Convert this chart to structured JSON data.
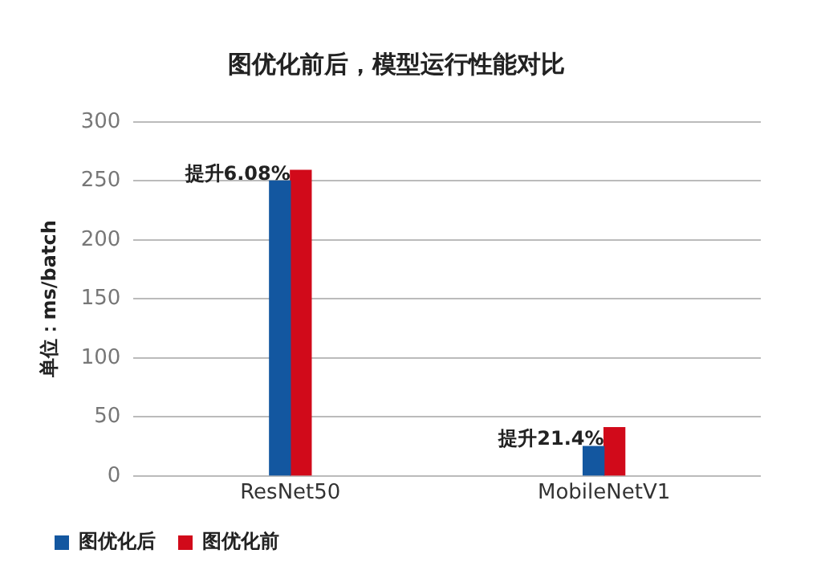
{
  "chart_data": {
    "type": "bar",
    "title": "图优化前后，模型运行性能对比",
    "ylabel": "单位：ms/batch",
    "categories": [
      "ResNet50",
      "MobileNetV1"
    ],
    "series": [
      {
        "name": "图优化后",
        "color": "#1357a0",
        "values": [
          250,
          25
        ]
      },
      {
        "name": "图优化前",
        "color": "#d10a1a",
        "values": [
          259,
          41
        ]
      }
    ],
    "ylim": [
      0,
      300
    ],
    "yticks": [
      0,
      50,
      100,
      150,
      200,
      250,
      300
    ],
    "grid": "y",
    "legend": "bottom left",
    "annotations": [
      {
        "text": "提升6.08%",
        "x": "ResNet50",
        "y": 250
      },
      {
        "text": "提升21.4%",
        "x": "MobileNetV1",
        "y": 25
      }
    ]
  }
}
